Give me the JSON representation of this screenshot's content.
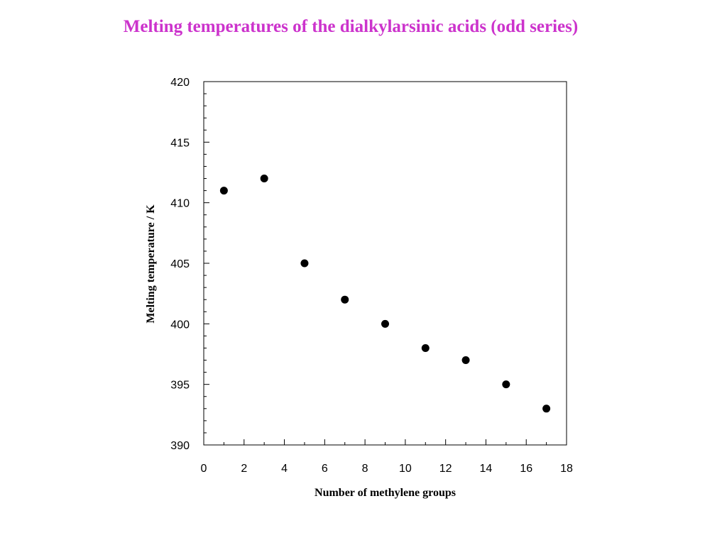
{
  "chart_data": {
    "type": "scatter",
    "title": "Melting temperatures of the dialkylarsinic acids (odd series)",
    "xlabel": "Number of methylene groups",
    "ylabel": "Melting temperature / K",
    "xlim": [
      0,
      18
    ],
    "ylim": [
      390,
      420
    ],
    "x_ticks": [
      0,
      2,
      4,
      6,
      8,
      10,
      12,
      14,
      16,
      18
    ],
    "y_ticks": [
      390,
      395,
      400,
      405,
      410,
      415,
      420
    ],
    "x_minor_step": 1,
    "y_minor_step": 1,
    "grid": false,
    "marker_color": "#000000",
    "title_color": "#cc33cc",
    "series": [
      {
        "x": [
          1,
          3,
          5,
          7,
          9,
          11,
          13,
          15,
          17
        ],
        "y": [
          411,
          412,
          405,
          402,
          400,
          398,
          397,
          395,
          393
        ]
      }
    ]
  }
}
